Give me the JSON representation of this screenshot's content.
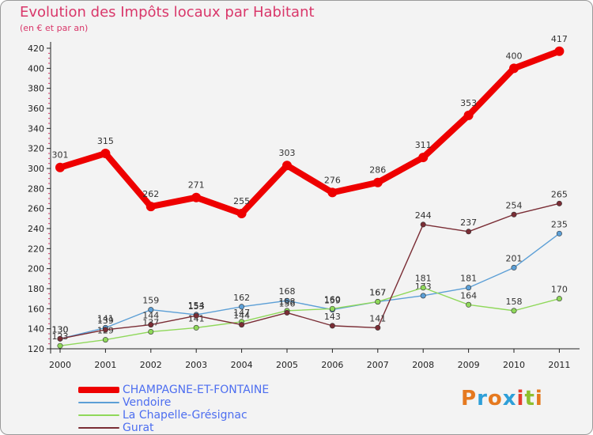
{
  "title": "Evolution des Impôts locaux par Habitant",
  "subtitle": "(en € et par an)",
  "logo": {
    "text": "Proxiti",
    "colors": [
      "#e5791f",
      "#2e9fd8",
      "#e5791f",
      "#2e9fd8",
      "#e53d2d",
      "#8fbf2e",
      "#e5791f"
    ]
  },
  "chart_data": {
    "type": "line",
    "x": [
      "2000",
      "2001",
      "2002",
      "2003",
      "2004",
      "2005",
      "2006",
      "2007",
      "2008",
      "2009",
      "2010",
      "2011"
    ],
    "ylim": [
      120,
      420
    ],
    "yticks": [
      120,
      140,
      160,
      180,
      200,
      220,
      240,
      260,
      280,
      300,
      320,
      340,
      360,
      380,
      400,
      420
    ],
    "grid": false,
    "legend_position": "bottom-left",
    "series": [
      {
        "name": "CHAMPAGNE-ET-FONTAINE",
        "color": "#ee0000",
        "values": [
          301,
          315,
          262,
          271,
          255,
          303,
          276,
          286,
          311,
          353,
          400,
          417
        ],
        "labels": [
          "301",
          "315",
          "262",
          "271",
          "255",
          "303",
          "276",
          "286",
          "311",
          "353",
          "400",
          "417"
        ]
      },
      {
        "name": "Vendoire",
        "color": "#5c9fd6",
        "values": [
          130,
          141,
          159,
          154,
          162,
          168,
          159,
          167,
          173,
          181,
          201,
          235
        ],
        "labels": [
          "130",
          "141",
          "159",
          "154",
          "162",
          "168",
          "159",
          "167",
          "173",
          "181",
          "201",
          "235"
        ]
      },
      {
        "name": "La Chapelle-Grésignac",
        "color": "#8fd85a",
        "values": [
          123,
          129,
          137,
          141,
          147,
          158,
          160,
          167,
          181,
          164,
          158,
          170
        ],
        "labels": [
          "123",
          "129",
          "137",
          "141",
          "147",
          "158",
          "160",
          "167",
          "181",
          "164",
          "158",
          "170"
        ]
      },
      {
        "name": "Gurat",
        "color": "#7a2d35",
        "values": [
          130,
          139,
          144,
          153,
          144,
          156,
          143,
          141,
          244,
          237,
          254,
          265
        ],
        "labels": [
          "130",
          "139",
          "144",
          "153",
          "144",
          "156",
          "143",
          "141",
          "244",
          "237",
          "254",
          "265"
        ]
      }
    ]
  }
}
